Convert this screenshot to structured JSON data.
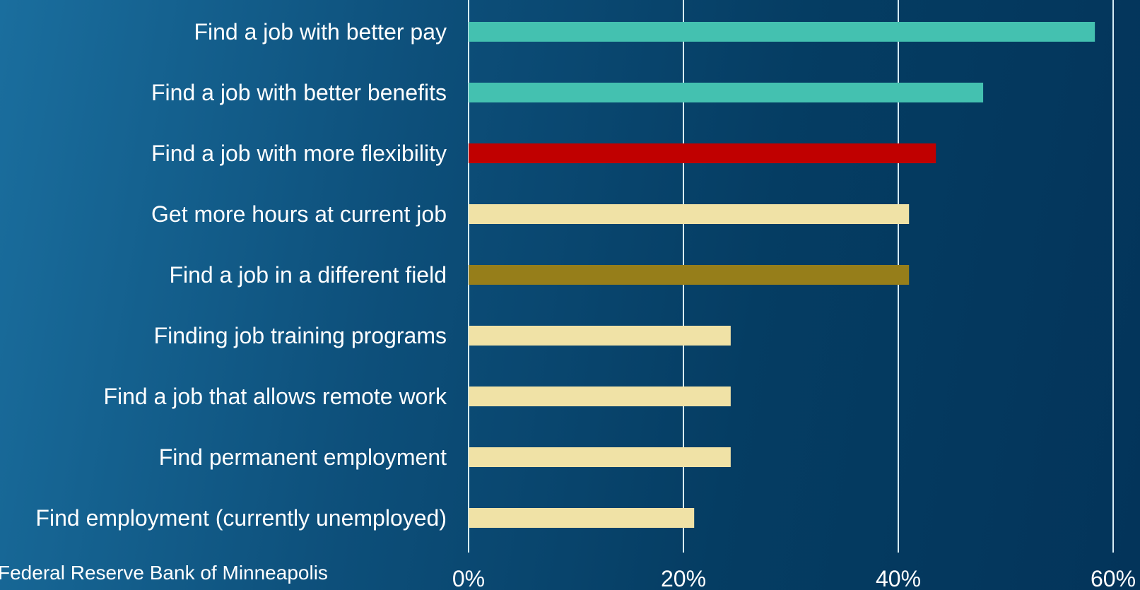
{
  "chart_data": {
    "type": "bar",
    "orientation": "horizontal",
    "title": "",
    "xlabel": "",
    "ylabel": "",
    "xlim": [
      0,
      60
    ],
    "ticks": [
      0,
      20,
      40,
      60
    ],
    "tick_labels": [
      "0%",
      "20%",
      "40%",
      "60%"
    ],
    "grid": true,
    "categories": [
      "Find a job with better pay",
      "Find a job with better benefits",
      "Find a job with more flexibility",
      "Get more hours at current job",
      "Find a job in a different field",
      "Finding job training programs",
      "Find a job that allows remote work",
      "Find permanent employment",
      "Find employment (currently unemployed)"
    ],
    "values": [
      58.3,
      47.9,
      43.5,
      41,
      41,
      24.4,
      24.4,
      24.4,
      21
    ],
    "bar_colors": [
      "#44c1b0",
      "#44c1b0",
      "#c00000",
      "#f0e2a6",
      "#967e1a",
      "#f0e2a6",
      "#f0e2a6",
      "#f0e2a6",
      "#f0e2a6"
    ]
  },
  "source": "Federal Reserve Bank of Minneapolis"
}
